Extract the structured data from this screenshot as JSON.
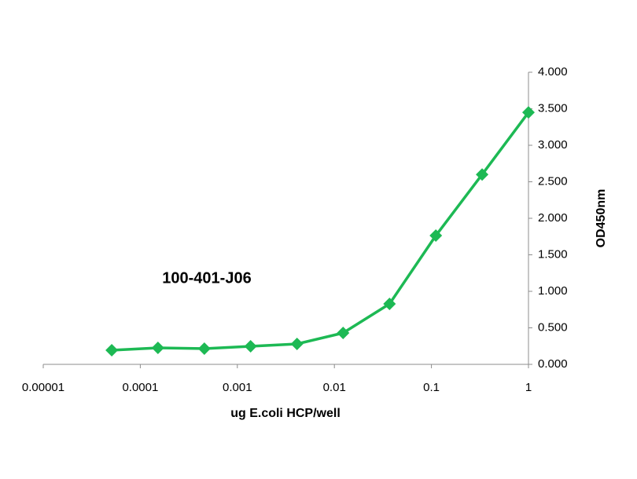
{
  "chart_data": {
    "type": "line",
    "annotation": "100-401-J06",
    "x_label": "ug E.coli HCP/well",
    "y_label": "OD450nm",
    "x": [
      5.08e-05,
      0.000152,
      0.000457,
      0.00137,
      0.00412,
      0.0123,
      0.037,
      0.111,
      0.333,
      1
    ],
    "values": [
      0.194,
      0.226,
      0.215,
      0.247,
      0.28,
      0.43,
      0.828,
      1.763,
      2.6,
      3.45
    ],
    "color": "#1db954",
    "xscale": "log",
    "xlim": [
      1e-05,
      1
    ],
    "xticks": [
      1e-05,
      0.0001,
      0.001,
      0.01,
      0.1,
      1
    ],
    "ylim": [
      0,
      4
    ],
    "yticks": [
      {
        "value": 0,
        "label": "0.000"
      },
      {
        "value": 0.5,
        "label": "0.500"
      },
      {
        "value": 1,
        "label": "1.000"
      },
      {
        "value": 1.5,
        "label": "1.500"
      },
      {
        "value": 2,
        "label": "2.000"
      },
      {
        "value": 2.5,
        "label": "2.500"
      },
      {
        "value": 3,
        "label": "3.000"
      },
      {
        "value": 3.5,
        "label": "3.500"
      },
      {
        "value": 4,
        "label": "4.000"
      }
    ],
    "y_axis_side": "right"
  }
}
